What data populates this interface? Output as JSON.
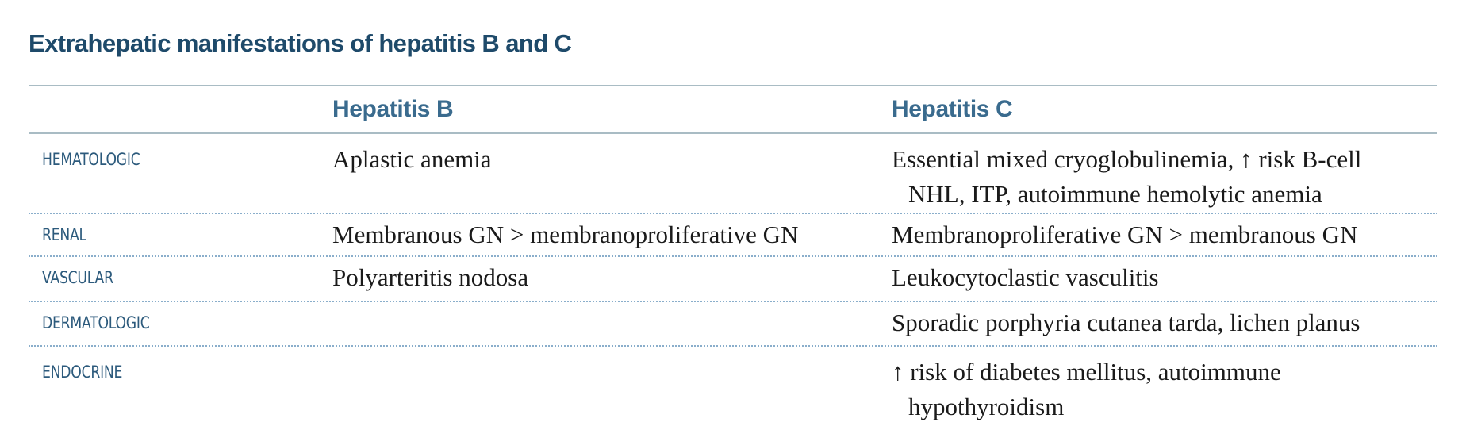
{
  "table": {
    "title": "Extrahepatic manifestations of hepatitis B and C",
    "headers": {
      "category": "",
      "hep_b": "Hepatitis B",
      "hep_c": "Hepatitis C"
    },
    "rows": [
      {
        "category": "HEMATOLOGIC",
        "hep_b": "Aplastic anemia",
        "hep_c": "Essential mixed cryoglobulinemia, ↑ risk B-cell NHL, ITP, autoimmune hemolytic anemia"
      },
      {
        "category": "RENAL",
        "hep_b": "Membranous GN > membranoproliferative GN",
        "hep_c": "Membranoproliferative GN > membranous GN"
      },
      {
        "category": "VASCULAR",
        "hep_b": "Polyarteritis nodosa",
        "hep_c": "Leukocytoclastic vasculitis"
      },
      {
        "category": "DERMATOLOGIC",
        "hep_b": "",
        "hep_c": "Sporadic porphyria cutanea tarda, lichen planus"
      },
      {
        "category": "ENDOCRINE",
        "hep_b": "",
        "hep_c": "↑ risk of diabetes mellitus, autoimmune hypothyroidism"
      }
    ]
  }
}
